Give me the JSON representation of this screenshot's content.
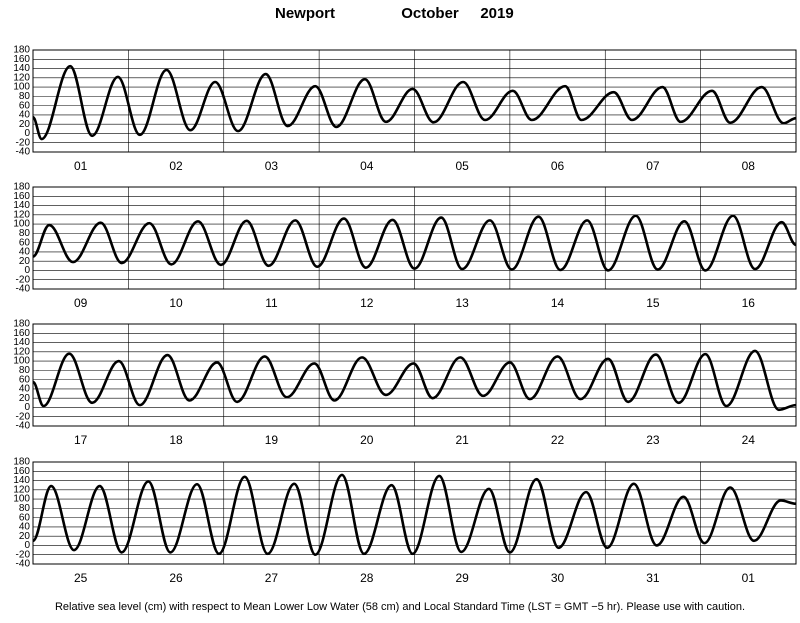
{
  "title_place": "Newport",
  "title_month": "October",
  "title_year": "2019",
  "note": "Relative sea level (cm) with respect to Mean Lower Low Water (58 cm) and Local Standard Time (LST = GMT −5 hr). Please use with caution.",
  "chart_data": [
    {
      "type": "line",
      "categories": [
        "01",
        "02",
        "03",
        "04",
        "05",
        "06",
        "07",
        "08"
      ],
      "xlim": [
        0,
        8
      ],
      "ylim": [
        -40,
        180
      ],
      "yticks": [
        -40,
        -20,
        0,
        20,
        40,
        60,
        80,
        100,
        120,
        140,
        160,
        180
      ],
      "grid": true,
      "color": "#000000",
      "x": [
        0,
        0.09,
        0.39,
        0.62,
        0.89,
        1.12,
        1.4,
        1.65,
        1.91,
        2.15,
        2.44,
        2.67,
        2.96,
        3.18,
        3.48,
        3.7,
        3.98,
        4.2,
        4.51,
        4.74,
        5.03,
        5.23,
        5.58,
        5.75,
        6.09,
        6.28,
        6.6,
        6.79,
        7.12,
        7.31,
        7.64,
        7.87,
        8
      ],
      "values": [
        35,
        -12,
        145,
        -5,
        122,
        -3,
        137,
        7,
        111,
        5,
        128,
        16,
        102,
        14,
        117,
        25,
        96,
        24,
        111,
        29,
        92,
        29,
        102,
        29,
        89,
        29,
        100,
        25,
        92,
        23,
        100,
        22,
        33
      ]
    },
    {
      "type": "line",
      "categories": [
        "09",
        "10",
        "11",
        "12",
        "13",
        "14",
        "15",
        "16"
      ],
      "xlim": [
        0,
        8
      ],
      "ylim": [
        -40,
        180
      ],
      "yticks": [
        -40,
        -20,
        0,
        20,
        40,
        60,
        80,
        100,
        120,
        140,
        160,
        180
      ],
      "grid": true,
      "color": "#000000",
      "x": [
        0,
        0.17,
        0.42,
        0.71,
        0.93,
        1.22,
        1.45,
        1.73,
        1.97,
        2.24,
        2.47,
        2.75,
        2.98,
        3.26,
        3.49,
        3.77,
        4,
        4.28,
        4.5,
        4.79,
        5.02,
        5.3,
        5.53,
        5.81,
        6.03,
        6.32,
        6.55,
        6.83,
        7.05,
        7.34,
        7.57,
        7.85,
        8
      ],
      "values": [
        30,
        98,
        18,
        103,
        16,
        102,
        13,
        106,
        12,
        107,
        10,
        108,
        8,
        112,
        6,
        109,
        4,
        114,
        3,
        108,
        2,
        116,
        1,
        108,
        0,
        118,
        2,
        106,
        0,
        118,
        3,
        104,
        55
      ]
    },
    {
      "type": "line",
      "categories": [
        "17",
        "18",
        "19",
        "20",
        "21",
        "22",
        "23",
        "24"
      ],
      "xlim": [
        0,
        8
      ],
      "ylim": [
        -40,
        180
      ],
      "yticks": [
        -40,
        -20,
        0,
        20,
        40,
        60,
        80,
        100,
        120,
        140,
        160,
        180
      ],
      "grid": true,
      "color": "#000000",
      "x": [
        0,
        0.11,
        0.38,
        0.62,
        0.9,
        1.12,
        1.41,
        1.64,
        1.93,
        2.14,
        2.43,
        2.66,
        2.95,
        3.16,
        3.45,
        3.7,
        3.99,
        4.19,
        4.48,
        4.72,
        5,
        5.21,
        5.5,
        5.74,
        6.03,
        6.24,
        6.53,
        6.77,
        7.05,
        7.27,
        7.57,
        7.82,
        8
      ],
      "values": [
        55,
        3,
        116,
        10,
        100,
        5,
        113,
        15,
        97,
        12,
        110,
        22,
        95,
        15,
        108,
        27,
        95,
        20,
        108,
        25,
        97,
        18,
        110,
        18,
        105,
        12,
        114,
        10,
        115,
        3,
        122,
        -5,
        5
      ]
    },
    {
      "type": "line",
      "categories": [
        "25",
        "26",
        "27",
        "28",
        "29",
        "30",
        "31",
        "01"
      ],
      "xlim": [
        0,
        8
      ],
      "ylim": [
        -40,
        180
      ],
      "yticks": [
        -40,
        -20,
        0,
        20,
        40,
        60,
        80,
        100,
        120,
        140,
        160,
        180
      ],
      "grid": true,
      "color": "#000000",
      "x": [
        0,
        0.19,
        0.43,
        0.7,
        0.93,
        1.21,
        1.44,
        1.72,
        1.95,
        2.22,
        2.46,
        2.74,
        2.96,
        3.24,
        3.47,
        3.76,
        3.98,
        4.26,
        4.49,
        4.78,
        5,
        5.28,
        5.51,
        5.8,
        6.02,
        6.3,
        6.54,
        6.82,
        7.04,
        7.31,
        7.56,
        7.84,
        8
      ],
      "values": [
        10,
        128,
        -10,
        128,
        -15,
        138,
        -15,
        132,
        -18,
        148,
        -18,
        133,
        -20,
        152,
        -18,
        130,
        -18,
        150,
        -14,
        122,
        -15,
        143,
        -5,
        115,
        -5,
        133,
        0,
        105,
        5,
        125,
        10,
        97,
        90
      ]
    }
  ]
}
